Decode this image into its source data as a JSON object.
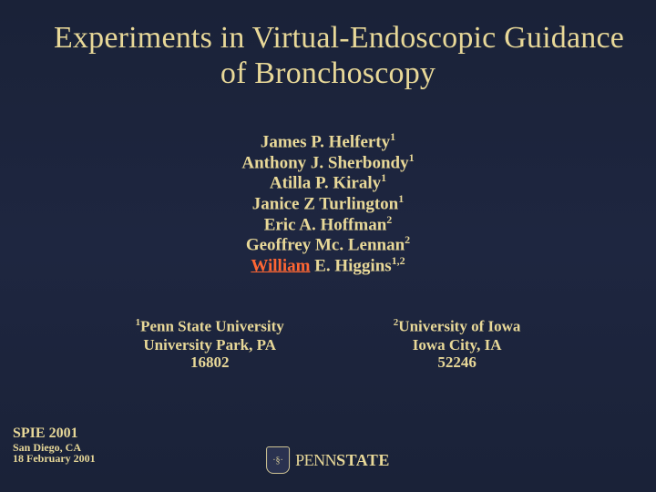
{
  "colors": {
    "background_top": "#1a2238",
    "background_mid": "#1e2640",
    "text": "#e8d898",
    "link": "#ff6633"
  },
  "title": {
    "line1": "Experiments in Virtual-Endoscopic Guidance",
    "line2": "of Bronchoscopy",
    "fontsize": 34
  },
  "authors": [
    {
      "name": "James P. Helferty",
      "sup": "1",
      "link": false
    },
    {
      "name": "Anthony J. Sherbondy",
      "sup": "1",
      "link": false
    },
    {
      "name": "Atilla P. Kiraly",
      "sup": "1",
      "link": false
    },
    {
      "name": "Janice Z Turlington",
      "sup": "1",
      "link": false
    },
    {
      "name": "Eric A. Hoffman",
      "sup": "2",
      "link": false
    },
    {
      "name": "Geoffrey Mc. Lennan",
      "sup": "2",
      "link": false
    },
    {
      "name_prefix": "William",
      "name_rest": " E. Higgins",
      "sup": "1,2",
      "link": true
    }
  ],
  "affiliations": {
    "left": {
      "sup": "1",
      "line1": "Penn State University",
      "line2": "University Park, PA",
      "line3": "16802"
    },
    "right": {
      "sup": "2",
      "line1": "University of Iowa",
      "line2": "Iowa City, IA",
      "line3": "52246"
    }
  },
  "conference": {
    "line1": "SPIE 2001",
    "line2": "San Diego, CA",
    "line3": "18 February 2001"
  },
  "logo": {
    "prefix": "PENN",
    "suffix": "STATE",
    "shield_text": "·§·"
  }
}
